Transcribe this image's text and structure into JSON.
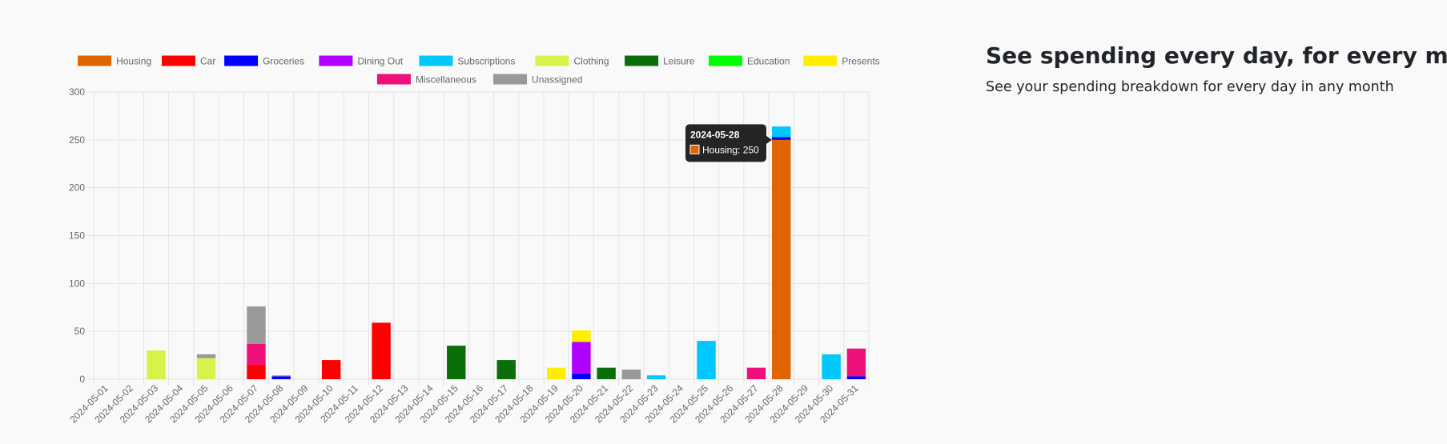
{
  "feature": {
    "title": "See spending every day, for every month",
    "subtitle": "See your spending breakdown for every day in any month"
  },
  "tooltip": {
    "date": "2024-05-28",
    "series": "Housing",
    "value": 250,
    "color": "#e06500"
  },
  "chart_data": {
    "type": "bar",
    "stacked": true,
    "title": "",
    "xlabel": "",
    "ylabel": "",
    "ylim": [
      0,
      300
    ],
    "yticks": [
      0,
      50,
      100,
      150,
      200,
      250,
      300
    ],
    "grid": true,
    "legend_position": "top",
    "categories": [
      "2024-05-01",
      "2024-05-02",
      "2024-05-03",
      "2024-05-04",
      "2024-05-05",
      "2024-05-06",
      "2024-05-07",
      "2024-05-08",
      "2024-05-09",
      "2024-05-10",
      "2024-05-11",
      "2024-05-12",
      "2024-05-13",
      "2024-05-14",
      "2024-05-15",
      "2024-05-16",
      "2024-05-17",
      "2024-05-18",
      "2024-05-19",
      "2024-05-20",
      "2024-05-21",
      "2024-05-22",
      "2024-05-23",
      "2024-05-24",
      "2024-05-25",
      "2024-05-26",
      "2024-05-27",
      "2024-05-28",
      "2024-05-29",
      "2024-05-30",
      "2024-05-31"
    ],
    "series": [
      {
        "name": "Housing",
        "color": "#e06500",
        "values": [
          0,
          0,
          0,
          0,
          0,
          0,
          0,
          0,
          0,
          0,
          0,
          0,
          0,
          0,
          0,
          0,
          0,
          0,
          0,
          0,
          0,
          0,
          0,
          0,
          0,
          0,
          0,
          250,
          0,
          0,
          0
        ]
      },
      {
        "name": "Car",
        "color": "#ff0000",
        "values": [
          0,
          0,
          0,
          0,
          0,
          0,
          15,
          0,
          0,
          20,
          0,
          59,
          0,
          0,
          0,
          0,
          0,
          0,
          0,
          0,
          0,
          0,
          0,
          0,
          0,
          0,
          0,
          0,
          0,
          0,
          0
        ]
      },
      {
        "name": "Groceries",
        "color": "#0000ff",
        "values": [
          0,
          0,
          0,
          0,
          0,
          0,
          0,
          3,
          0,
          0,
          0,
          0,
          0,
          0,
          0,
          0,
          0,
          0,
          0,
          6,
          0,
          0,
          0,
          0,
          0,
          0,
          0,
          3,
          0,
          0,
          3
        ]
      },
      {
        "name": "Dining Out",
        "color": "#b000ff",
        "values": [
          0,
          0,
          0,
          0,
          0,
          0,
          0,
          0,
          0,
          0,
          0,
          0,
          0,
          0,
          0,
          0,
          0,
          0,
          0,
          33,
          0,
          0,
          0,
          0,
          0,
          0,
          0,
          0,
          0,
          0,
          0
        ]
      },
      {
        "name": "Subscriptions",
        "color": "#00c8ff",
        "values": [
          0,
          0,
          0,
          0,
          0,
          0,
          0,
          0,
          0,
          0,
          0,
          0,
          0,
          0,
          0,
          0,
          0,
          0,
          0,
          0,
          0,
          0,
          4,
          0,
          40,
          0,
          0,
          11,
          0,
          26,
          0
        ]
      },
      {
        "name": "Clothing",
        "color": "#d8f24a",
        "values": [
          0,
          0,
          30,
          0,
          22,
          0,
          0,
          0,
          0,
          0,
          0,
          0,
          0,
          0,
          0,
          0,
          0,
          0,
          0,
          0,
          0,
          0,
          0,
          0,
          0,
          0,
          0,
          0,
          0,
          0,
          0
        ]
      },
      {
        "name": "Leisure",
        "color": "#0a6e0a",
        "values": [
          0,
          0,
          0,
          0,
          0,
          0,
          0,
          0,
          0,
          0,
          0,
          0,
          0,
          0,
          35,
          0,
          20,
          0,
          0,
          0,
          12,
          0,
          0,
          0,
          0,
          0,
          0,
          0,
          0,
          0,
          0
        ]
      },
      {
        "name": "Education",
        "color": "#00ff00",
        "values": [
          0,
          0,
          0,
          0,
          0,
          0,
          0,
          0,
          0,
          0,
          0,
          0,
          0,
          0,
          0,
          0,
          0,
          0,
          0,
          0,
          0,
          0,
          0,
          0,
          0,
          0,
          0,
          0,
          0,
          0,
          0
        ]
      },
      {
        "name": "Presents",
        "color": "#ffee00",
        "values": [
          0,
          0,
          0,
          0,
          0,
          0,
          0,
          0,
          0,
          0,
          0,
          0,
          0,
          0,
          0,
          0,
          0,
          0,
          12,
          12,
          0,
          0,
          0,
          0,
          0,
          0,
          0,
          0,
          0,
          0,
          0
        ]
      },
      {
        "name": "Miscellaneous",
        "color": "#f0107a",
        "values": [
          0,
          0,
          0,
          0,
          0,
          0,
          22,
          0,
          0,
          0,
          0,
          0,
          0,
          0,
          0,
          0,
          0,
          0,
          0,
          0,
          0,
          0,
          0,
          0,
          0,
          0,
          12,
          0,
          0,
          0,
          29
        ]
      },
      {
        "name": "Unassigned",
        "color": "#999999",
        "values": [
          0,
          0,
          0,
          0,
          4,
          0,
          39,
          1,
          0,
          0,
          0,
          0,
          0,
          0,
          0,
          0,
          0,
          0,
          0,
          0,
          0,
          10,
          0,
          0,
          0,
          0,
          0,
          0,
          0,
          0,
          0
        ]
      }
    ]
  }
}
